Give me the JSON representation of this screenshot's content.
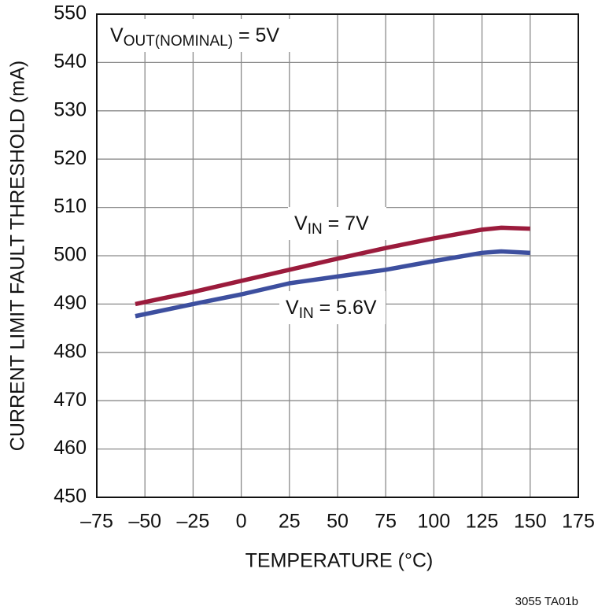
{
  "chart_data": {
    "type": "line",
    "x_label": "TEMPERATURE (°C)",
    "y_label": "CURRENT LIMIT FAULT THRESHOLD (mA)",
    "annotation": {
      "main": "V",
      "sub": "OUT(NOMINAL)",
      "rest": " = 5V"
    },
    "footnote": "3055 TA01b",
    "x": [
      -55,
      -25,
      0,
      25,
      50,
      75,
      100,
      125,
      135,
      150
    ],
    "series": [
      {
        "label": {
          "main": "V",
          "sub": "IN",
          "rest": " = 7V"
        },
        "color": "#9b1b3c",
        "values": [
          490,
          492.5,
          494.8,
          497.1,
          499.4,
          501.6,
          503.6,
          505.4,
          505.8,
          505.6
        ]
      },
      {
        "label": {
          "main": "V",
          "sub": "IN",
          "rest": " = 5.6V"
        },
        "color": "#3d4f9f",
        "values": [
          487.5,
          490,
          492,
          494.3,
          495.7,
          497.1,
          498.9,
          500.6,
          500.9,
          500.6
        ]
      }
    ],
    "xlim": [
      -75,
      175
    ],
    "xticks": [
      {
        "value": -75,
        "label": "–75"
      },
      {
        "value": -50,
        "label": "–50"
      },
      {
        "value": -25,
        "label": "–25"
      },
      0,
      25,
      50,
      75,
      100,
      125,
      150,
      175
    ],
    "ylim": [
      450,
      550
    ],
    "yticks": [
      450,
      460,
      470,
      480,
      490,
      500,
      510,
      520,
      530,
      540,
      550
    ],
    "grid": true
  }
}
